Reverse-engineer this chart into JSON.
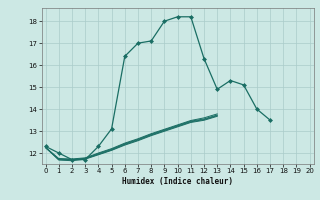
{
  "xlabel": "Humidex (Indice chaleur)",
  "bg_color": "#cce8e4",
  "grid_color": "#aaccca",
  "line_color": "#1a6e64",
  "x_values": [
    0,
    1,
    2,
    3,
    4,
    5,
    6,
    7,
    8,
    9,
    10,
    11,
    12,
    13,
    14,
    15,
    16,
    17,
    18,
    19,
    20
  ],
  "series": [
    {
      "data": [
        12.3,
        12.0,
        11.7,
        11.7,
        12.3,
        13.1,
        16.4,
        17.0,
        17.1,
        18.0,
        18.2,
        18.2,
        16.3,
        14.9,
        15.3,
        15.1,
        14.0,
        13.5,
        null,
        null,
        null
      ],
      "marker": true
    },
    {
      "data": [
        12.25,
        11.75,
        11.73,
        11.78,
        12.0,
        12.2,
        12.45,
        12.65,
        12.88,
        13.08,
        13.28,
        13.48,
        13.6,
        13.78,
        null,
        null,
        null,
        null,
        null,
        null,
        null
      ],
      "marker": false
    },
    {
      "data": [
        12.25,
        11.72,
        11.7,
        11.76,
        11.97,
        12.17,
        12.42,
        12.62,
        12.85,
        13.05,
        13.25,
        13.45,
        13.55,
        13.73,
        null,
        null,
        null,
        null,
        null,
        null,
        null
      ],
      "marker": false
    },
    {
      "data": [
        12.25,
        11.7,
        11.68,
        11.74,
        11.94,
        12.14,
        12.39,
        12.59,
        12.82,
        13.02,
        13.22,
        13.42,
        13.52,
        13.7,
        null,
        null,
        null,
        null,
        null,
        null,
        null
      ],
      "marker": false
    },
    {
      "data": [
        12.25,
        11.68,
        11.65,
        11.72,
        11.92,
        12.12,
        12.36,
        12.56,
        12.79,
        12.99,
        13.19,
        13.39,
        13.49,
        13.67,
        null,
        null,
        null,
        null,
        null,
        null,
        null
      ],
      "marker": false
    }
  ],
  "ylim": [
    11.5,
    18.6
  ],
  "xlim": [
    -0.3,
    20.3
  ],
  "yticks": [
    12,
    13,
    14,
    15,
    16,
    17,
    18
  ],
  "xticks": [
    0,
    1,
    2,
    3,
    4,
    5,
    6,
    7,
    8,
    9,
    10,
    11,
    12,
    13,
    14,
    15,
    16,
    17,
    18,
    19,
    20
  ]
}
